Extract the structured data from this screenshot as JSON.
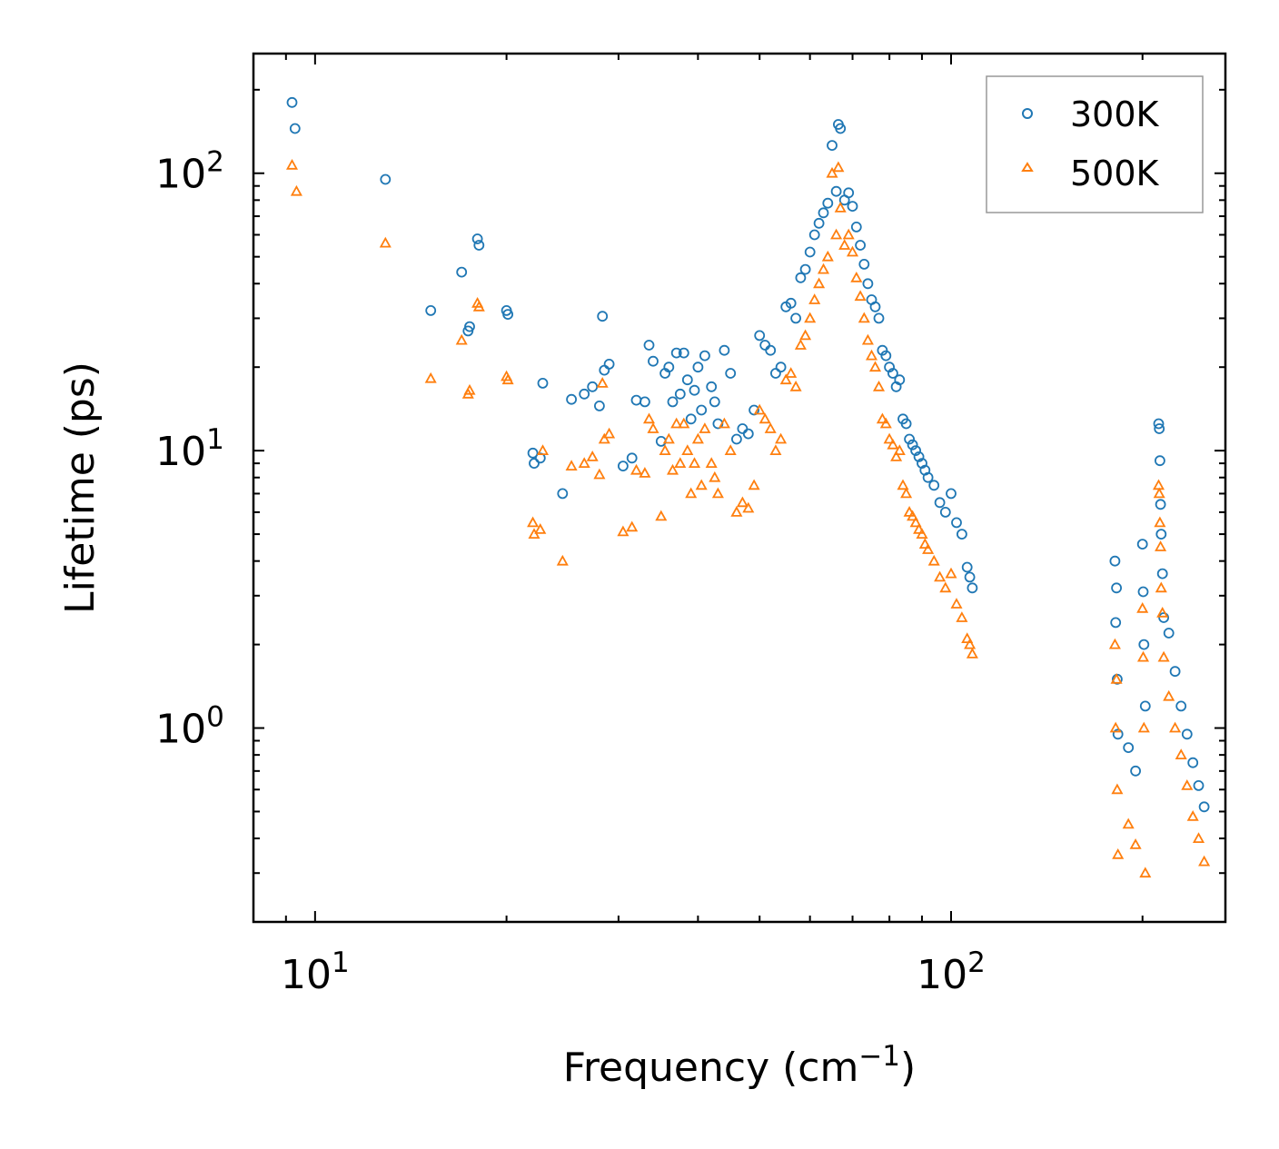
{
  "chart_data": {
    "type": "scatter",
    "xscale": "log",
    "yscale": "log",
    "xlim": [
      8,
      270
    ],
    "ylim": [
      0.2,
      270
    ],
    "xlabel": "Frequency (cm",
    "xlabel_sup": "−1",
    "xlabel_end": ")",
    "ylabel": "Lifetime (ps)",
    "legend_position": "top-right",
    "x_ticks": [
      {
        "base": "10",
        "exp": "1",
        "value": 10
      },
      {
        "base": "10",
        "exp": "2",
        "value": 100
      }
    ],
    "y_ticks": [
      {
        "base": "10",
        "exp": "0",
        "value": 1
      },
      {
        "base": "10",
        "exp": "1",
        "value": 10
      },
      {
        "base": "10",
        "exp": "2",
        "value": 100
      }
    ],
    "series": [
      {
        "name": "300K",
        "color": "#1f77b4",
        "marker": "circle",
        "points": [
          [
            9.2,
            180
          ],
          [
            9.3,
            145
          ],
          [
            12.9,
            95
          ],
          [
            15.2,
            32
          ],
          [
            17.0,
            44
          ],
          [
            17.4,
            27
          ],
          [
            17.5,
            28
          ],
          [
            18.0,
            58
          ],
          [
            18.1,
            55
          ],
          [
            20.0,
            32
          ],
          [
            20.1,
            31
          ],
          [
            22.0,
            9.8
          ],
          [
            22.1,
            9.0
          ],
          [
            22.6,
            9.4
          ],
          [
            22.8,
            17.5
          ],
          [
            24.5,
            7.0
          ],
          [
            25.3,
            15.3
          ],
          [
            26.5,
            16
          ],
          [
            27.3,
            17
          ],
          [
            28.0,
            14.5
          ],
          [
            28.5,
            19.5
          ],
          [
            29.0,
            20.5
          ],
          [
            28.3,
            30.5
          ],
          [
            30.5,
            8.8
          ],
          [
            31.5,
            9.4
          ],
          [
            32.0,
            15.2
          ],
          [
            33.0,
            15.0
          ],
          [
            33.5,
            24
          ],
          [
            34.0,
            21
          ],
          [
            35.0,
            10.8
          ],
          [
            35.5,
            19
          ],
          [
            36.0,
            20
          ],
          [
            36.5,
            15
          ],
          [
            37.0,
            22.5
          ],
          [
            37.5,
            16
          ],
          [
            38.0,
            22.5
          ],
          [
            38.5,
            18
          ],
          [
            39.0,
            13
          ],
          [
            39.5,
            16.5
          ],
          [
            40.0,
            20
          ],
          [
            40.5,
            14
          ],
          [
            41.0,
            22
          ],
          [
            42.0,
            17
          ],
          [
            42.5,
            15
          ],
          [
            43.0,
            12.5
          ],
          [
            44.0,
            23
          ],
          [
            45.0,
            19
          ],
          [
            46.0,
            11
          ],
          [
            47.0,
            12
          ],
          [
            48.0,
            11.5
          ],
          [
            49.0,
            14
          ],
          [
            50.0,
            26
          ],
          [
            51.0,
            24
          ],
          [
            52.0,
            23
          ],
          [
            53.0,
            19
          ],
          [
            54.0,
            20
          ],
          [
            55.0,
            33
          ],
          [
            56.0,
            34
          ],
          [
            57.0,
            30
          ],
          [
            58.0,
            42
          ],
          [
            59.0,
            45
          ],
          [
            60.0,
            52
          ],
          [
            61.0,
            60
          ],
          [
            62.0,
            66
          ],
          [
            63.0,
            72
          ],
          [
            64.0,
            78
          ],
          [
            65.0,
            126
          ],
          [
            66.0,
            86
          ],
          [
            66.5,
            150
          ],
          [
            67.0,
            145
          ],
          [
            68.0,
            80
          ],
          [
            69.0,
            85
          ],
          [
            70.0,
            76
          ],
          [
            71.0,
            64
          ],
          [
            72.0,
            55
          ],
          [
            73.0,
            47
          ],
          [
            74.0,
            40
          ],
          [
            75.0,
            35
          ],
          [
            76.0,
            33
          ],
          [
            77.0,
            30
          ],
          [
            78.0,
            23
          ],
          [
            79.0,
            22
          ],
          [
            80.0,
            20
          ],
          [
            81.0,
            19
          ],
          [
            82.0,
            17
          ],
          [
            83.0,
            18
          ],
          [
            84.0,
            13
          ],
          [
            85.0,
            12.5
          ],
          [
            86.0,
            11
          ],
          [
            87.0,
            10.5
          ],
          [
            88.0,
            10
          ],
          [
            89.0,
            9.5
          ],
          [
            90.0,
            9
          ],
          [
            91.0,
            8.5
          ],
          [
            92.0,
            8
          ],
          [
            94.0,
            7.5
          ],
          [
            96.0,
            6.5
          ],
          [
            98.0,
            6
          ],
          [
            100.0,
            7
          ],
          [
            102.0,
            5.5
          ],
          [
            104.0,
            5
          ],
          [
            106.0,
            3.8
          ],
          [
            107.0,
            3.5
          ],
          [
            108.0,
            3.2
          ],
          [
            181.0,
            4.0
          ],
          [
            182.0,
            3.2
          ],
          [
            181.5,
            2.4
          ],
          [
            182.5,
            1.5
          ],
          [
            183.0,
            0.95
          ],
          [
            190.0,
            0.85
          ],
          [
            195.0,
            0.7
          ],
          [
            200.0,
            4.6
          ],
          [
            200.5,
            3.1
          ],
          [
            201.0,
            2.0
          ],
          [
            202.0,
            1.2
          ],
          [
            212.0,
            12.5
          ],
          [
            212.5,
            12.0
          ],
          [
            213.0,
            9.2
          ],
          [
            213.5,
            6.4
          ],
          [
            214.0,
            5.0
          ],
          [
            215.0,
            3.6
          ],
          [
            216.0,
            2.5
          ],
          [
            220.0,
            2.2
          ],
          [
            225.0,
            1.6
          ],
          [
            230.0,
            1.2
          ],
          [
            235.0,
            0.95
          ],
          [
            240.0,
            0.75
          ],
          [
            245.0,
            0.62
          ],
          [
            250.0,
            0.52
          ]
        ]
      },
      {
        "name": "500K",
        "color": "#ff7f0e",
        "marker": "triangle",
        "points": [
          [
            9.2,
            107
          ],
          [
            9.35,
            86
          ],
          [
            12.9,
            56
          ],
          [
            15.2,
            18.2
          ],
          [
            17.0,
            25
          ],
          [
            17.4,
            16
          ],
          [
            17.5,
            16.5
          ],
          [
            18.0,
            34
          ],
          [
            18.1,
            33
          ],
          [
            20.0,
            18.5
          ],
          [
            20.1,
            18
          ],
          [
            22.0,
            5.5
          ],
          [
            22.1,
            5.0
          ],
          [
            22.6,
            5.2
          ],
          [
            22.8,
            10
          ],
          [
            24.5,
            4.0
          ],
          [
            25.3,
            8.8
          ],
          [
            26.5,
            9
          ],
          [
            27.3,
            9.5
          ],
          [
            28.0,
            8.2
          ],
          [
            28.5,
            11
          ],
          [
            29.0,
            11.5
          ],
          [
            28.3,
            17.5
          ],
          [
            30.5,
            5.1
          ],
          [
            31.5,
            5.3
          ],
          [
            32.0,
            8.5
          ],
          [
            33.0,
            8.3
          ],
          [
            33.5,
            13
          ],
          [
            34.0,
            12
          ],
          [
            35.0,
            5.8
          ],
          [
            35.5,
            10
          ],
          [
            36.0,
            11
          ],
          [
            36.5,
            8.5
          ],
          [
            37.0,
            12.5
          ],
          [
            37.5,
            9
          ],
          [
            38.0,
            12.5
          ],
          [
            38.5,
            10
          ],
          [
            39.0,
            7
          ],
          [
            39.5,
            9
          ],
          [
            40.0,
            11
          ],
          [
            40.5,
            7.5
          ],
          [
            41.0,
            12
          ],
          [
            42.0,
            9
          ],
          [
            42.5,
            8
          ],
          [
            43.0,
            7
          ],
          [
            44.0,
            12.5
          ],
          [
            45.0,
            10
          ],
          [
            46.0,
            6
          ],
          [
            47.0,
            6.5
          ],
          [
            48.0,
            6.2
          ],
          [
            49.0,
            7.5
          ],
          [
            50.0,
            14
          ],
          [
            51.0,
            13
          ],
          [
            52.0,
            12
          ],
          [
            53.0,
            10
          ],
          [
            54.0,
            11
          ],
          [
            55.0,
            18
          ],
          [
            56.0,
            19
          ],
          [
            57.0,
            17
          ],
          [
            58.0,
            24
          ],
          [
            59.0,
            26
          ],
          [
            60.0,
            30
          ],
          [
            61.0,
            35
          ],
          [
            62.0,
            40
          ],
          [
            63.0,
            45
          ],
          [
            64.0,
            50
          ],
          [
            65.0,
            100
          ],
          [
            66.0,
            60
          ],
          [
            66.5,
            105
          ],
          [
            67.0,
            75
          ],
          [
            68.0,
            55
          ],
          [
            69.0,
            60
          ],
          [
            70.0,
            52
          ],
          [
            71.0,
            42
          ],
          [
            72.0,
            36
          ],
          [
            73.0,
            30
          ],
          [
            74.0,
            25
          ],
          [
            75.0,
            22
          ],
          [
            76.0,
            20
          ],
          [
            77.0,
            17
          ],
          [
            78.0,
            13
          ],
          [
            79.0,
            12.5
          ],
          [
            80.0,
            11
          ],
          [
            81.0,
            10.5
          ],
          [
            82.0,
            9.5
          ],
          [
            83.0,
            10
          ],
          [
            84.0,
            7.5
          ],
          [
            85.0,
            7
          ],
          [
            86.0,
            6
          ],
          [
            87.0,
            5.8
          ],
          [
            88.0,
            5.5
          ],
          [
            89.0,
            5.2
          ],
          [
            90.0,
            5
          ],
          [
            91.0,
            4.6
          ],
          [
            92.0,
            4.4
          ],
          [
            94.0,
            4
          ],
          [
            96.0,
            3.5
          ],
          [
            98.0,
            3.2
          ],
          [
            100.0,
            3.6
          ],
          [
            102.0,
            2.8
          ],
          [
            104.0,
            2.5
          ],
          [
            106.0,
            2.1
          ],
          [
            107.0,
            2.0
          ],
          [
            108.0,
            1.85
          ],
          [
            181.0,
            2.0
          ],
          [
            182.0,
            1.5
          ],
          [
            181.5,
            1.0
          ],
          [
            182.5,
            0.6
          ],
          [
            183.0,
            0.35
          ],
          [
            190.0,
            0.45
          ],
          [
            195.0,
            0.38
          ],
          [
            200.0,
            2.7
          ],
          [
            200.5,
            1.8
          ],
          [
            201.0,
            1.0
          ],
          [
            202.0,
            0.3
          ],
          [
            212.0,
            7.5
          ],
          [
            212.5,
            7.0
          ],
          [
            213.0,
            5.5
          ],
          [
            213.5,
            4.5
          ],
          [
            214.0,
            3.2
          ],
          [
            215.0,
            2.6
          ],
          [
            216.0,
            1.8
          ],
          [
            220.0,
            1.3
          ],
          [
            225.0,
            1.0
          ],
          [
            230.0,
            0.8
          ],
          [
            235.0,
            0.62
          ],
          [
            240.0,
            0.48
          ],
          [
            245.0,
            0.4
          ],
          [
            250.0,
            0.33
          ]
        ]
      }
    ]
  }
}
